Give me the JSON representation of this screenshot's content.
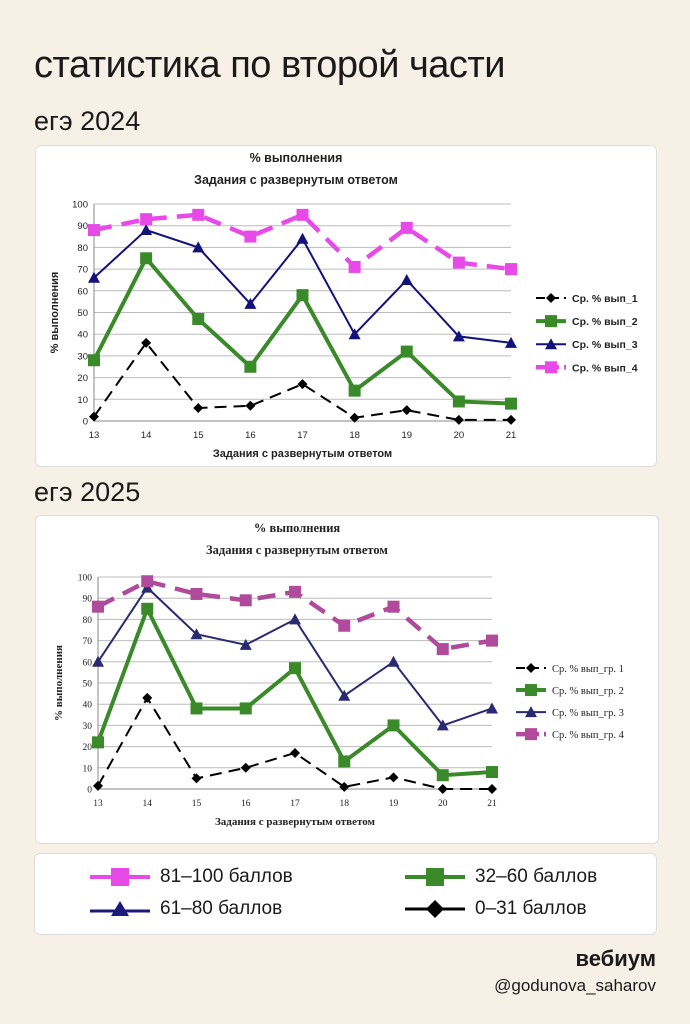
{
  "header": {
    "title": "статистика по второй части",
    "year_2024": "егэ 2024",
    "year_2025": "егэ 2025"
  },
  "legend": [
    {
      "label": "81–100 баллов",
      "color": "#e84ae8",
      "marker": "square"
    },
    {
      "label": "32–60 баллов",
      "color": "#3a8a2a",
      "marker": "square"
    },
    {
      "label": "61–80 баллов",
      "color": "#1a1a7a",
      "marker": "triangle"
    },
    {
      "label": "0–31 баллов",
      "color": "#000000",
      "marker": "diamond"
    }
  ],
  "footer": {
    "brand": "вебиум",
    "handle": "@godunova_saharov"
  },
  "chart_data": [
    {
      "type": "line",
      "title": "% выполнения",
      "subtitle": "Задания с развернутым ответом",
      "xlabel": "Задания с развернутым ответом",
      "ylabel": "% выполнения",
      "ylim": [
        0,
        100
      ],
      "yticks": [
        "0",
        "10",
        "20",
        "30",
        "40",
        "50",
        "60",
        "70",
        "80",
        "90",
        "100"
      ],
      "categories": [
        "13",
        "14",
        "15",
        "16",
        "17",
        "18",
        "19",
        "20",
        "21"
      ],
      "grid": true,
      "legend_position": "right",
      "series": [
        {
          "name": "Ср. % вып_1",
          "color": "#000000",
          "marker": "diamond",
          "dash": true,
          "values": [
            2,
            36,
            6,
            7,
            17,
            1.5,
            5,
            0.5,
            0.5
          ]
        },
        {
          "name": "Ср. % вып_2",
          "color": "#3a8a2a",
          "marker": "square",
          "dash": false,
          "values": [
            28,
            75,
            47,
            25,
            58,
            14,
            32,
            9,
            8
          ]
        },
        {
          "name": "Ср. % вып_3",
          "color": "#12127a",
          "marker": "triangle",
          "dash": false,
          "values": [
            66,
            88,
            80,
            54,
            84,
            40,
            65,
            39,
            36
          ]
        },
        {
          "name": "Ср. % вып_4",
          "color": "#e84ae8",
          "marker": "square",
          "dash": true,
          "values": [
            88,
            93,
            95,
            85,
            95,
            71,
            89,
            73,
            70
          ]
        }
      ]
    },
    {
      "type": "line",
      "title": "% выполнения",
      "subtitle": "Задания с развернутым ответом",
      "xlabel": "Задания с развернутым ответом",
      "ylabel": "% выполнения",
      "ylim": [
        0,
        100
      ],
      "yticks": [
        "0",
        "10",
        "20",
        "30",
        "40",
        "50",
        "60",
        "70",
        "80",
        "90",
        "100"
      ],
      "categories": [
        "13",
        "14",
        "15",
        "16",
        "17",
        "18",
        "19",
        "20",
        "21"
      ],
      "grid": true,
      "legend_position": "right",
      "series": [
        {
          "name": "Ср. % вып_гр. 1",
          "color": "#000000",
          "marker": "diamond",
          "dash": true,
          "values": [
            1.5,
            43,
            5,
            10,
            17,
            1,
            5.5,
            0,
            0
          ]
        },
        {
          "name": "Ср. % вып_гр. 2",
          "color": "#3a8a2a",
          "marker": "square",
          "dash": false,
          "values": [
            22,
            85,
            38,
            38,
            57,
            13,
            30,
            6.5,
            8
          ]
        },
        {
          "name": "Ср. % вып_гр. 3",
          "color": "#2a2a70",
          "marker": "triangle",
          "dash": false,
          "values": [
            60,
            95,
            73,
            68,
            80,
            44,
            60,
            30,
            38
          ]
        },
        {
          "name": "Ср. % вып_гр. 4",
          "color": "#b04a9a",
          "marker": "square",
          "dash": true,
          "values": [
            86,
            98,
            92,
            89,
            93,
            77,
            86,
            66,
            70
          ]
        }
      ]
    }
  ]
}
